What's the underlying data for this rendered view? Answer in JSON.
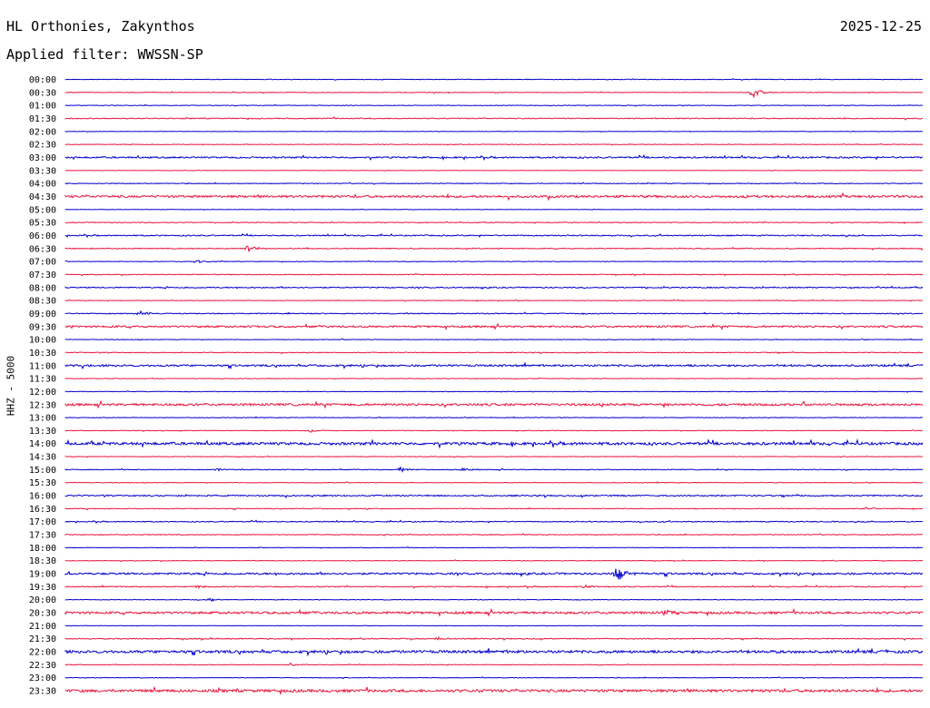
{
  "station": "HL Orthonies, Zakynthos",
  "date": "2025-12-25",
  "filter_label": "Applied filter: WWSSN-SP",
  "channel_label": "HHZ - 5000",
  "colors": {
    "even_row": "#0000cc",
    "odd_row": "#e8143c"
  },
  "chart_data": {
    "type": "line",
    "title": "HL Orthonies, Zakynthos",
    "ylabel": "HHZ - 5000",
    "row_labels": [
      "00:00",
      "00:30",
      "01:00",
      "01:30",
      "02:00",
      "02:30",
      "03:00",
      "03:30",
      "04:00",
      "04:30",
      "05:00",
      "05:30",
      "06:00",
      "06:30",
      "07:00",
      "07:30",
      "08:00",
      "08:30",
      "09:00",
      "09:30",
      "10:00",
      "10:30",
      "11:00",
      "11:30",
      "12:00",
      "12:30",
      "13:00",
      "13:30",
      "14:00",
      "14:30",
      "15:00",
      "15:30",
      "16:00",
      "16:30",
      "17:00",
      "17:30",
      "18:00",
      "18:30",
      "19:00",
      "19:30",
      "20:00",
      "20:30",
      "21:00",
      "21:30",
      "22:00",
      "22:30",
      "23:00",
      "23:30"
    ],
    "noise_level": [
      0.3,
      0.3,
      0.3,
      0.5,
      0.2,
      0.3,
      0.8,
      0.2,
      0.4,
      1.2,
      0.2,
      0.4,
      0.6,
      0.5,
      0.3,
      0.4,
      0.6,
      0.3,
      0.5,
      1.0,
      0.3,
      0.4,
      1.0,
      0.3,
      0.3,
      1.2,
      0.3,
      0.3,
      1.4,
      0.3,
      0.4,
      0.3,
      0.7,
      0.4,
      0.5,
      0.4,
      0.3,
      0.3,
      1.0,
      0.5,
      0.3,
      1.2,
      0.2,
      0.5,
      1.4,
      0.3,
      0.3,
      1.4
    ],
    "events": [
      {
        "row": "00:30",
        "minute": 24.0,
        "amplitude": 7
      },
      {
        "row": "06:30",
        "minute": 6.4,
        "amplitude": 5
      },
      {
        "row": "07:00",
        "minute": 4.6,
        "amplitude": 3
      },
      {
        "row": "09:00",
        "minute": 2.6,
        "amplitude": 3
      },
      {
        "row": "13:30",
        "minute": 8.6,
        "amplitude": 2
      },
      {
        "row": "15:00",
        "minute": 5.3,
        "amplitude": 2
      },
      {
        "row": "15:00",
        "minute": 11.7,
        "amplitude": 3
      },
      {
        "row": "15:00",
        "minute": 13.9,
        "amplitude": 2
      },
      {
        "row": "16:30",
        "minute": 28.0,
        "amplitude": 2
      },
      {
        "row": "19:00",
        "minute": 19.3,
        "amplitude": 9
      },
      {
        "row": "19:30",
        "minute": 4.6,
        "amplitude": 2
      },
      {
        "row": "19:30",
        "minute": 18.2,
        "amplitude": 2
      },
      {
        "row": "20:00",
        "minute": 5.0,
        "amplitude": 2
      },
      {
        "row": "20:30",
        "minute": 21.0,
        "amplitude": 5
      },
      {
        "row": "21:30",
        "minute": 13.0,
        "amplitude": 2
      },
      {
        "row": "22:30",
        "minute": 7.9,
        "amplitude": 2
      }
    ]
  }
}
